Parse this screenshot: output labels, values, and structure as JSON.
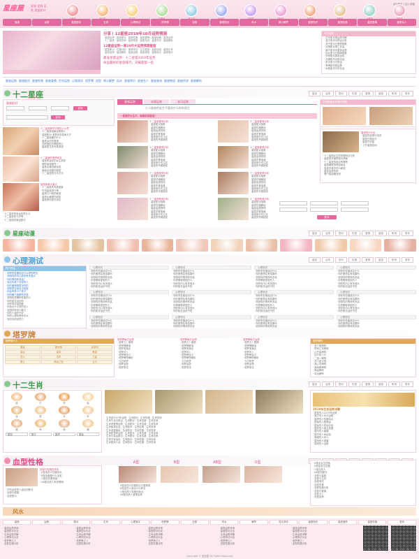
{
  "header": {
    "logo": "星座屋",
    "tagline": "星座 爱情 运势 星座配对",
    "toplinks": "设为首页 | 加入收藏",
    "zodiacs": [
      "白羊座",
      "金牛座",
      "双子座",
      "巨蟹座",
      "狮子座",
      "处女座",
      "天秤座",
      "天蝎座",
      "射手座",
      "摩羯座",
      "水瓶座",
      "双鱼座"
    ],
    "nav": [
      "星座",
      "运势",
      "星座配对",
      "生肖",
      "心理测试",
      "塔罗牌",
      "血型",
      "星座配对",
      "风水",
      "周公解梦",
      "星座知识",
      "星座性格",
      "星座爱情",
      "星座名人"
    ]
  },
  "headline": {
    "title": "分享丨12星座2019年10月运势预测",
    "title2": "12星座运势一周10月大运势预测星座",
    "title3": "最准星座运势：十二星座2019年运势",
    "title4": "命运最好的星座排行，天蝎座第一名"
  },
  "sections": {
    "xingzuo": "十二星座",
    "dongman": "星座动漫",
    "xinli": "心理测试",
    "taluo": "塔罗牌",
    "shengxiao": "十二生肖",
    "xuexing": "血型性格",
    "fengshui": "风水"
  },
  "section_tabs": [
    "星座",
    "运势",
    "配对",
    "性格",
    "爱情",
    "星座",
    "职场",
    "更多"
  ],
  "xingzuo": {
    "form_label": "星座配对",
    "search_button": "查询",
    "featured": "十二星座那些可爱的小心思",
    "center_title": "十二星座的女生不喜欢什么样的男生",
    "center_head": "一星座的女生中，谁最容易被追？",
    "right_title": "巨蟹座最近有哪些烦恼"
  },
  "xinli": {
    "left_head": "热门测试",
    "lines": [
      "测你的性格适合什么样的职业",
      "测测你的内心到底有多强大",
      "你的情商有多高？",
      "测试你是个怎样的人",
      "你的爱情观是怎样的",
      "测你是否适合当老板",
      "你会有多少个孩子",
      "你的魅力指数有多高"
    ]
  },
  "taluo": {
    "left_head": "塔罗牌占卜",
    "cards": [
      "愚者",
      "魔术师",
      "女祭司",
      "皇后",
      "皇帝",
      "教皇",
      "恋人",
      "战车",
      "力量",
      "隐士",
      "命运之轮",
      "正义"
    ],
    "right_head": "塔罗牌阵"
  },
  "shengxiao": {
    "animals": [
      "鼠",
      "牛",
      "虎",
      "兔",
      "龙",
      "蛇",
      "马",
      "羊",
      "猴",
      "鸡",
      "狗",
      "猪"
    ],
    "right_head": "2019年生肖运势详解"
  },
  "xuexing": {
    "types": [
      "A型",
      "B型",
      "AB型",
      "O型"
    ]
  },
  "footer": {
    "links": [
      "星座",
      "运势",
      "配对",
      "生肖",
      "心理测试",
      "塔罗牌",
      "血型",
      "风水",
      "解梦",
      "姓名测试",
      "星座知识",
      "星座爱情",
      "星座性格",
      "更多"
    ],
    "copyright": "Copyright © 星座屋 All Rights Reserved"
  }
}
